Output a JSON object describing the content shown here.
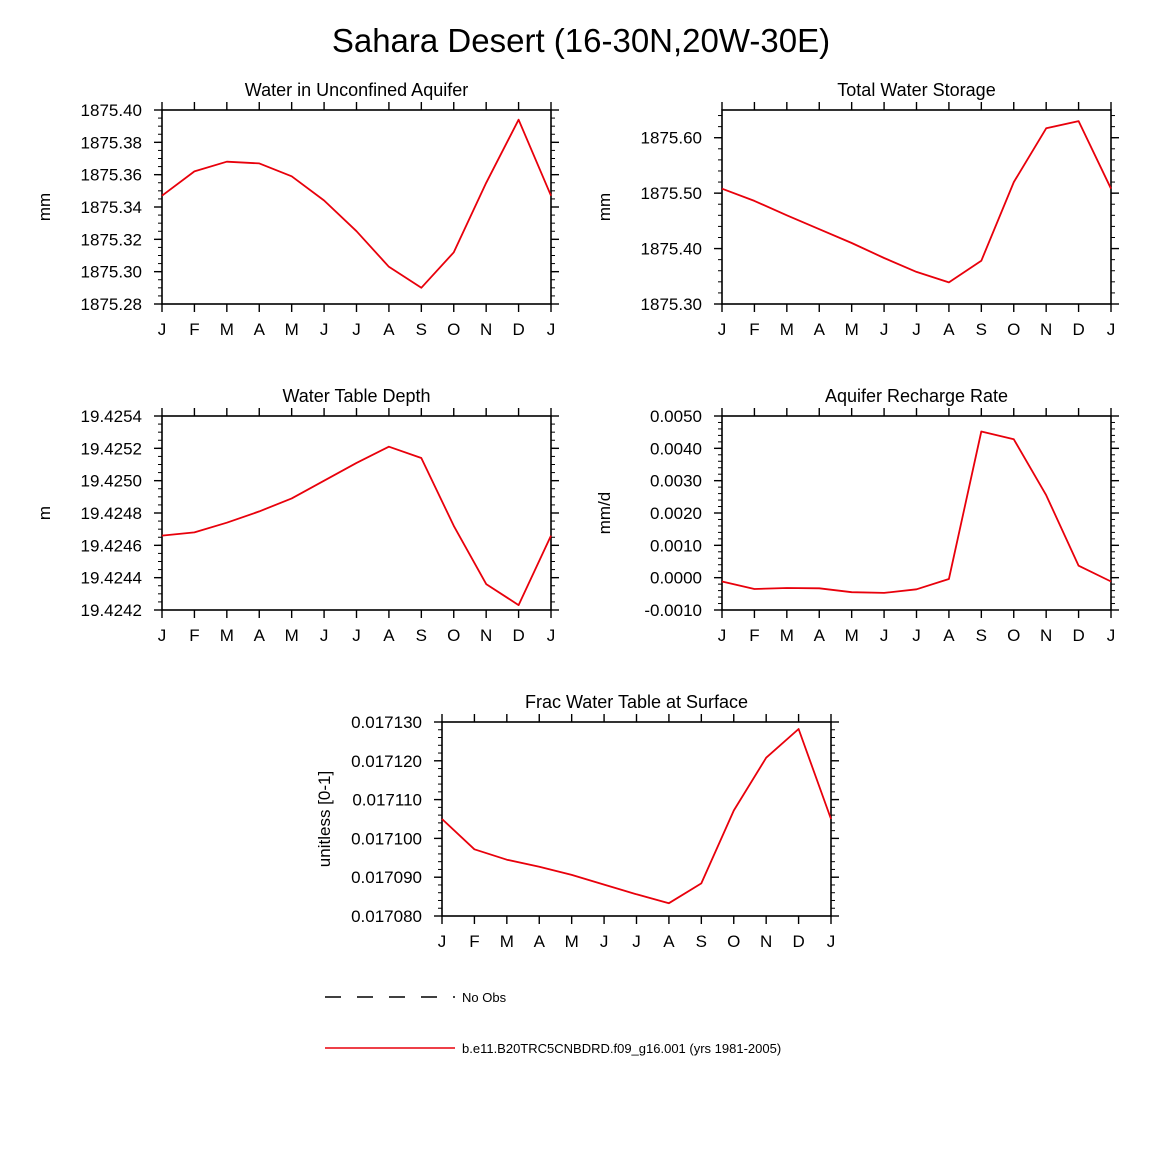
{
  "title": "Sahara Desert (16-30N,20W-30E)",
  "months": [
    "J",
    "F",
    "M",
    "A",
    "M",
    "J",
    "J",
    "A",
    "S",
    "O",
    "N",
    "D",
    "J"
  ],
  "series_color": "#e8000b",
  "legend": {
    "entries": [
      {
        "label": "No Obs",
        "style": "dashed",
        "color": "#000000"
      },
      {
        "label": "b.e11.B20TRC5CNBDRD.f09_g16.001 (yrs 1981-2005)",
        "style": "solid",
        "color": "#e8000b"
      }
    ]
  },
  "chart_data": [
    {
      "id": "p1",
      "type": "line",
      "title": "Water in Unconfined Aquifer",
      "xlabel": "",
      "ylabel": "mm",
      "ylim": [
        1875.28,
        1875.4
      ],
      "yticks": [
        1875.28,
        1875.3,
        1875.32,
        1875.34,
        1875.36,
        1875.38,
        1875.4
      ],
      "ytick_labels": [
        "1875.28",
        "1875.30",
        "1875.32",
        "1875.34",
        "1875.36",
        "1875.38",
        "1875.40"
      ],
      "yminor": 0.005,
      "values": [
        1875.347,
        1875.362,
        1875.368,
        1875.367,
        1875.359,
        1875.344,
        1875.325,
        1875.303,
        1875.29,
        1875.312,
        1875.355,
        1875.394,
        1875.347
      ]
    },
    {
      "id": "p2",
      "type": "line",
      "title": "Total Water Storage",
      "xlabel": "",
      "ylabel": "mm",
      "ylim": [
        1875.3,
        1875.65
      ],
      "yticks": [
        1875.3,
        1875.4,
        1875.5,
        1875.6
      ],
      "ytick_labels": [
        "1875.30",
        "1875.40",
        "1875.50",
        "1875.60"
      ],
      "yminor": 0.02,
      "values": [
        1875.508,
        1875.486,
        1875.46,
        1875.435,
        1875.41,
        1875.383,
        1875.358,
        1875.339,
        1875.378,
        1875.52,
        1875.617,
        1875.63,
        1875.508
      ]
    },
    {
      "id": "p3",
      "type": "line",
      "title": "Water Table Depth",
      "xlabel": "",
      "ylabel": "m",
      "ylim": [
        19.4242,
        19.4254
      ],
      "yticks": [
        19.4242,
        19.4244,
        19.4246,
        19.4248,
        19.425,
        19.4252,
        19.4254
      ],
      "ytick_labels": [
        "19.4242",
        "19.4244",
        "19.4246",
        "19.4248",
        "19.4250",
        "19.4252",
        "19.4254"
      ],
      "yminor": 5e-05,
      "values": [
        19.42466,
        19.42468,
        19.42474,
        19.42481,
        19.42489,
        19.425,
        19.42511,
        19.42521,
        19.42514,
        19.42472,
        19.42436,
        19.42423,
        19.42466
      ]
    },
    {
      "id": "p4",
      "type": "line",
      "title": "Aquifer Recharge Rate",
      "xlabel": "",
      "ylabel": "mm/d",
      "ylim": [
        -0.001,
        0.005
      ],
      "yticks": [
        -0.001,
        0.0,
        0.001,
        0.002,
        0.003,
        0.004,
        0.005
      ],
      "ytick_labels": [
        "-0.0010",
        "0.0000",
        "0.0010",
        "0.0020",
        "0.0030",
        "0.0040",
        "0.0050"
      ],
      "yminor": 0.0002,
      "values": [
        -0.00012,
        -0.00035,
        -0.00032,
        -0.00033,
        -0.00045,
        -0.00047,
        -0.00036,
        -4e-05,
        0.00452,
        0.00428,
        0.00255,
        0.00037,
        -0.00012
      ]
    },
    {
      "id": "p5",
      "type": "line",
      "title": "Frac Water Table at Surface",
      "xlabel": "",
      "ylabel": "unitless [0-1]",
      "ylim": [
        0.01708,
        0.01713
      ],
      "yticks": [
        0.01708,
        0.01709,
        0.0171,
        0.01711,
        0.01712,
        0.01713
      ],
      "ytick_labels": [
        "0.017080",
        "0.017090",
        "0.017100",
        "0.017110",
        "0.017120",
        "0.017130"
      ],
      "yminor": 2e-06,
      "values": [
        0.017105,
        0.0170972,
        0.0170945,
        0.0170927,
        0.0170906,
        0.0170881,
        0.0170856,
        0.0170833,
        0.0170884,
        0.0171072,
        0.0171208,
        0.0171282,
        0.017105
      ]
    }
  ]
}
